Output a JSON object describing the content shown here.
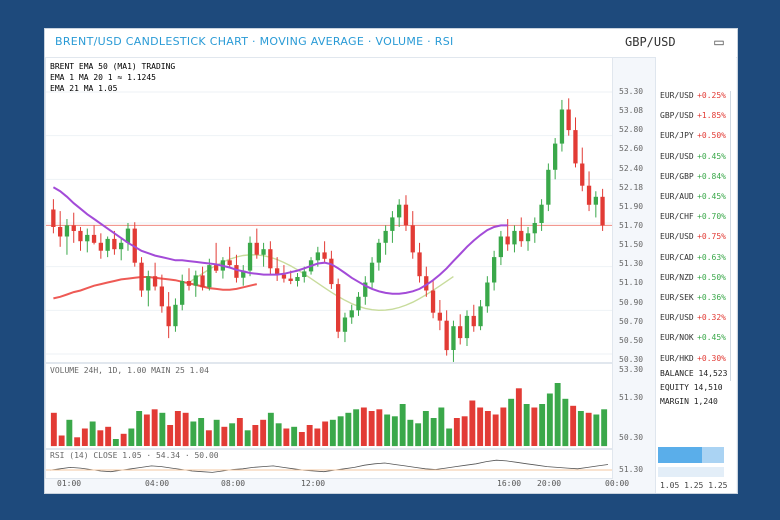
{
  "window": {
    "title": "BRENT/USD CANDLESTICK CHART · MOVING AVERAGE · VOLUME · RSI",
    "pair": "GBP/USD",
    "window_icon": "window-restore-icon"
  },
  "legend": [
    {
      "text": "BRENT EMA 50 (MA1) TRADING",
      "color": "#777777"
    },
    {
      "text": "EMA 1 MA 20 1 ≈ 1.1245",
      "color": "#58b858"
    },
    {
      "text": "EMA 21 MA 1.05",
      "color": "#e85858"
    }
  ],
  "colors": {
    "up": "#3aa84a",
    "down": "#e23b35",
    "ma_fast": "#a34bd8",
    "ma_slow": "#ee5a55",
    "ma_mid": "#c8dc9c",
    "accent": "#2a9bd6"
  },
  "price_axis": [
    "53.30",
    "53.08",
    "52.80",
    "52.60",
    "52.40",
    "52.18",
    "51.90",
    "51.70",
    "51.50",
    "51.30",
    "51.10",
    "50.90",
    "50.70",
    "50.50",
    "50.30"
  ],
  "volume_axis": [
    "53.30",
    "51.30",
    "50.30"
  ],
  "osc_axis": [
    "51.30"
  ],
  "time_axis": [
    "01:00",
    "04:00",
    "08:00",
    "12:00",
    "16:00",
    "20:00",
    "00:00"
  ],
  "volume_panel": {
    "title": "VOLUME 24H, 1D, 1.00 MAIN 25 1.04"
  },
  "osc_panel": {
    "title": "RSI (14) CLOSE 1.05 · 54.34 · 50.00"
  },
  "quotes": [
    {
      "pair": "EUR/USD",
      "change": "+0.25%",
      "dir": "down"
    },
    {
      "pair": "GBP/USD",
      "change": "+1.85%",
      "dir": "down"
    },
    {
      "pair": "EUR/JPY",
      "change": "+0.50%",
      "dir": "down"
    },
    {
      "pair": "EUR/USD",
      "change": "+0.45%",
      "dir": "up"
    },
    {
      "pair": "EUR/GBP",
      "change": "+0.84%",
      "dir": "up"
    },
    {
      "pair": "EUR/AUD",
      "change": "+0.45%",
      "dir": "up"
    },
    {
      "pair": "EUR/CHF",
      "change": "+0.70%",
      "dir": "up"
    },
    {
      "pair": "EUR/USD",
      "change": "+0.75%",
      "dir": "down"
    },
    {
      "pair": "EUR/CAD",
      "change": "+0.63%",
      "dir": "up"
    },
    {
      "pair": "EUR/NZD",
      "change": "+0.50%",
      "dir": "up"
    },
    {
      "pair": "EUR/SEK",
      "change": "+0.36%",
      "dir": "up"
    },
    {
      "pair": "EUR/USD",
      "change": "+0.32%",
      "dir": "down"
    },
    {
      "pair": "EUR/NOK",
      "change": "+0.45%",
      "dir": "up"
    },
    {
      "pair": "EUR/HKD",
      "change": "+0.30%",
      "dir": "down"
    }
  ],
  "balance": {
    "line1": "BALANCE 14,523",
    "line2": "EQUITY 14,510",
    "line3": "MARGIN 1,240"
  },
  "status": {
    "left": "1.05",
    "mid": "1.25",
    "right": "1.25"
  },
  "chart_data": {
    "type": "candlestick",
    "series_colors": {
      "up": "#3aa84a",
      "down": "#e23b35"
    },
    "candles": [
      [
        51.82,
        51.95,
        51.52,
        51.6
      ],
      [
        51.6,
        51.8,
        51.35,
        51.48
      ],
      [
        51.48,
        51.7,
        51.25,
        51.62
      ],
      [
        51.62,
        51.78,
        51.4,
        51.55
      ],
      [
        51.55,
        51.6,
        51.3,
        51.42
      ],
      [
        51.42,
        51.58,
        51.28,
        51.5
      ],
      [
        51.5,
        51.62,
        51.38,
        51.4
      ],
      [
        51.4,
        51.52,
        51.2,
        51.3
      ],
      [
        51.3,
        51.48,
        51.22,
        51.45
      ],
      [
        51.45,
        51.55,
        51.25,
        51.32
      ],
      [
        51.32,
        51.45,
        51.18,
        51.4
      ],
      [
        51.4,
        51.65,
        51.3,
        51.58
      ],
      [
        51.58,
        51.66,
        51.1,
        51.15
      ],
      [
        51.15,
        51.22,
        50.72,
        50.8
      ],
      [
        50.8,
        51.05,
        50.6,
        50.98
      ],
      [
        50.98,
        51.15,
        50.8,
        50.85
      ],
      [
        50.85,
        51.0,
        50.52,
        50.6
      ],
      [
        50.6,
        50.78,
        50.2,
        50.35
      ],
      [
        50.35,
        50.7,
        50.28,
        50.62
      ],
      [
        50.62,
        51.0,
        50.55,
        50.92
      ],
      [
        50.92,
        51.08,
        50.8,
        50.86
      ],
      [
        50.86,
        51.05,
        50.72,
        50.99
      ],
      [
        50.99,
        51.1,
        50.8,
        50.84
      ],
      [
        50.84,
        51.2,
        50.8,
        51.12
      ],
      [
        51.12,
        51.4,
        51.02,
        51.05
      ],
      [
        51.05,
        51.22,
        50.95,
        51.18
      ],
      [
        51.18,
        51.35,
        51.08,
        51.12
      ],
      [
        51.12,
        51.25,
        50.9,
        50.96
      ],
      [
        50.96,
        51.12,
        50.86,
        51.05
      ],
      [
        51.05,
        51.48,
        50.98,
        51.4
      ],
      [
        51.4,
        51.58,
        51.2,
        51.25
      ],
      [
        51.25,
        51.4,
        51.1,
        51.32
      ],
      [
        51.32,
        51.42,
        51.0,
        51.08
      ],
      [
        51.08,
        51.22,
        50.92,
        51.0
      ],
      [
        51.0,
        51.12,
        50.9,
        50.95
      ],
      [
        50.95,
        51.05,
        50.88,
        50.92
      ],
      [
        50.92,
        51.02,
        50.85,
        50.97
      ],
      [
        50.97,
        51.1,
        50.9,
        51.04
      ],
      [
        51.04,
        51.22,
        51.0,
        51.18
      ],
      [
        51.18,
        51.35,
        51.1,
        51.28
      ],
      [
        51.28,
        51.42,
        51.15,
        51.2
      ],
      [
        51.2,
        51.3,
        50.82,
        50.88
      ],
      [
        50.88,
        50.95,
        50.2,
        50.28
      ],
      [
        50.28,
        50.52,
        50.15,
        50.46
      ],
      [
        50.46,
        50.62,
        50.38,
        50.55
      ],
      [
        50.55,
        50.78,
        50.48,
        50.72
      ],
      [
        50.72,
        50.98,
        50.62,
        50.9
      ],
      [
        50.9,
        51.22,
        50.82,
        51.15
      ],
      [
        51.15,
        51.45,
        51.05,
        51.4
      ],
      [
        51.4,
        51.62,
        51.25,
        51.55
      ],
      [
        51.55,
        51.8,
        51.4,
        51.72
      ],
      [
        51.72,
        51.95,
        51.6,
        51.88
      ],
      [
        51.88,
        52.0,
        51.55,
        51.62
      ],
      [
        51.62,
        51.8,
        51.2,
        51.28
      ],
      [
        51.28,
        51.4,
        50.9,
        50.98
      ],
      [
        50.98,
        51.1,
        50.72,
        50.8
      ],
      [
        50.8,
        50.92,
        50.45,
        50.52
      ],
      [
        50.52,
        50.68,
        50.3,
        50.42
      ],
      [
        50.42,
        50.55,
        49.98,
        50.05
      ],
      [
        50.05,
        50.42,
        49.9,
        50.35
      ],
      [
        50.35,
        50.5,
        50.12,
        50.2
      ],
      [
        50.2,
        50.55,
        50.1,
        50.48
      ],
      [
        50.48,
        50.62,
        50.28,
        50.35
      ],
      [
        50.35,
        50.68,
        50.3,
        50.6
      ],
      [
        50.6,
        50.98,
        50.52,
        50.9
      ],
      [
        50.9,
        51.3,
        50.8,
        51.22
      ],
      [
        51.22,
        51.55,
        51.12,
        51.48
      ],
      [
        51.48,
        51.7,
        51.3,
        51.38
      ],
      [
        51.38,
        51.62,
        51.28,
        51.55
      ],
      [
        51.55,
        51.72,
        51.35,
        51.42
      ],
      [
        51.42,
        51.6,
        51.3,
        51.52
      ],
      [
        51.52,
        51.72,
        51.4,
        51.65
      ],
      [
        51.65,
        51.95,
        51.55,
        51.88
      ],
      [
        51.88,
        52.4,
        51.8,
        52.32
      ],
      [
        52.32,
        52.72,
        52.2,
        52.65
      ],
      [
        52.65,
        53.2,
        52.55,
        53.08
      ],
      [
        53.08,
        53.22,
        52.75,
        52.82
      ],
      [
        52.82,
        52.98,
        52.35,
        52.4
      ],
      [
        52.4,
        52.6,
        52.05,
        52.12
      ],
      [
        52.12,
        52.3,
        51.8,
        51.88
      ],
      [
        51.88,
        52.05,
        51.72,
        51.98
      ],
      [
        51.98,
        52.08,
        51.55,
        51.62
      ]
    ],
    "ma_fast": [
      52.1,
      52.05,
      51.98,
      51.9,
      51.83,
      51.76,
      51.7,
      51.64,
      51.58,
      51.52,
      51.46,
      51.4,
      51.35,
      51.3,
      51.27,
      51.24,
      51.22,
      51.2,
      51.18,
      51.18,
      51.17,
      51.16,
      51.15,
      51.14,
      51.13,
      51.11,
      51.09,
      51.06,
      51.04,
      51.02,
      51.01,
      51.0,
      51.0,
      51.0,
      51.01,
      51.03,
      51.05,
      51.08,
      51.11,
      51.14,
      51.15,
      51.13,
      51.08,
      51.02,
      50.96,
      50.91,
      50.86,
      50.82,
      50.79,
      50.77,
      50.76,
      50.76,
      50.77,
      50.79,
      50.82,
      50.87,
      50.93,
      51.0,
      51.08,
      51.17,
      51.26,
      51.35,
      51.43,
      51.5,
      51.56,
      51.6,
      51.62,
      51.62
    ],
    "ma_slow": [
      50.7,
      50.72,
      50.75,
      50.78,
      50.8,
      50.83,
      50.86,
      50.88,
      50.9,
      50.92,
      50.94,
      50.95,
      50.96,
      50.97,
      50.97,
      50.96,
      50.95,
      50.94,
      50.93,
      50.91,
      50.89,
      50.87,
      50.85,
      50.83,
      50.82,
      50.81,
      50.81,
      50.82,
      50.84,
      50.86,
      50.88
    ],
    "ylim": [
      50.0,
      53.3
    ]
  },
  "volume_data": [
    38,
    12,
    30,
    10,
    20,
    28,
    18,
    22,
    8,
    14,
    20,
    40,
    36,
    42,
    38,
    24,
    40,
    38,
    28,
    32,
    18,
    30,
    22,
    26,
    32,
    18,
    24,
    30,
    38,
    26,
    20,
    22,
    16,
    24,
    20,
    28,
    30,
    34,
    38,
    42,
    44,
    40,
    42,
    36,
    34,
    48,
    30,
    26,
    40,
    32,
    44,
    20,
    32,
    34,
    52,
    44,
    40,
    36,
    44,
    54,
    66,
    48,
    44,
    48,
    60,
    72,
    54,
    46,
    40,
    38,
    36,
    42
  ],
  "osc_data": [
    48,
    50,
    52,
    51,
    49,
    47,
    46,
    48,
    50,
    52,
    54,
    53,
    51,
    49,
    47,
    46,
    45,
    47,
    49,
    50,
    52,
    53,
    54,
    52,
    50,
    48,
    47,
    46,
    48,
    50,
    52,
    55,
    57,
    58,
    56,
    54,
    52,
    50,
    49,
    51,
    53,
    55,
    57,
    60,
    62,
    61,
    59,
    57,
    55,
    53,
    52,
    51,
    50,
    52,
    54,
    56
  ]
}
